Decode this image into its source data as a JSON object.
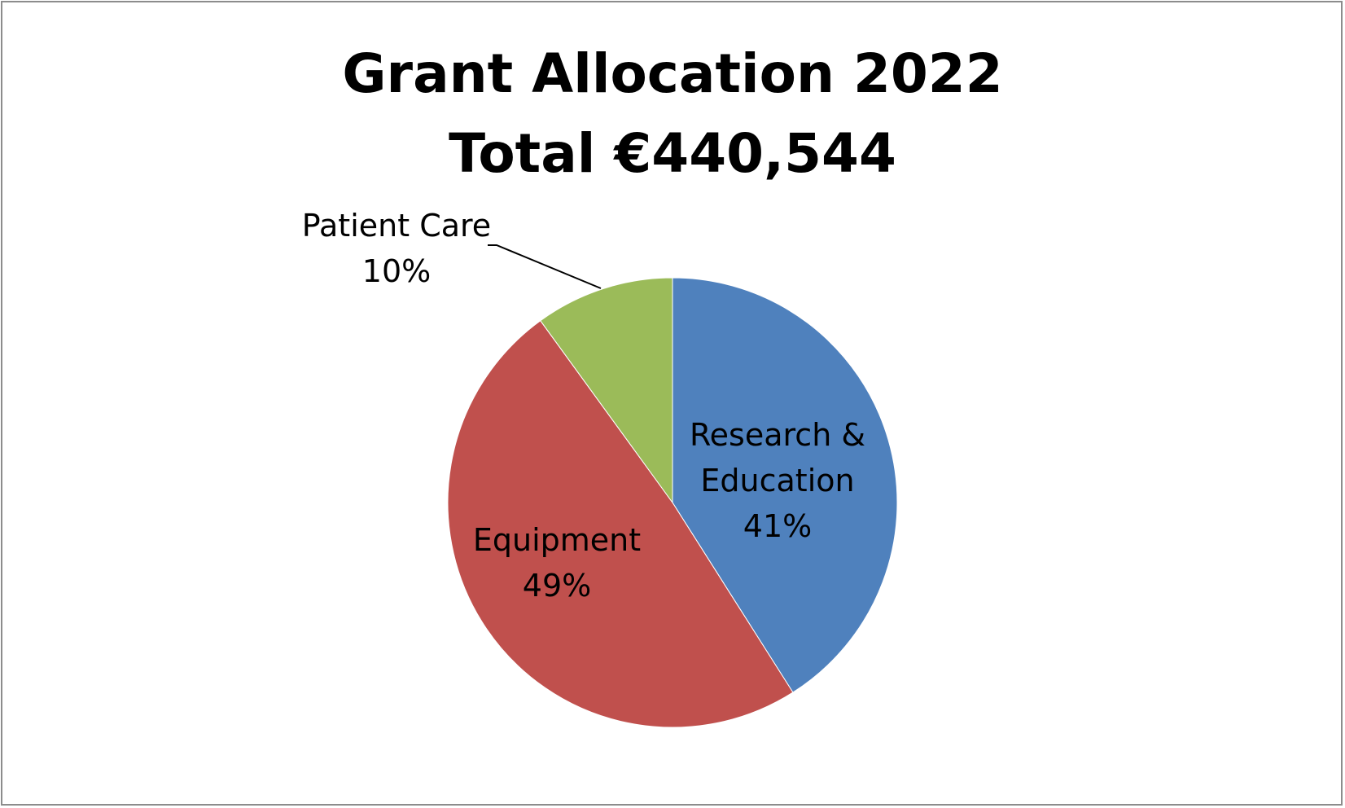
{
  "chart_data": {
    "type": "pie",
    "title": "Grant Allocation 2022",
    "subtitle": "Total €440,544",
    "slices": [
      {
        "name": "Research & Education",
        "label_lines": [
          "Research &",
          "Education"
        ],
        "value": 41,
        "value_label": "41%",
        "color": "#4f81bd"
      },
      {
        "name": "Equipment",
        "label_lines": [
          "Equipment"
        ],
        "value": 49,
        "value_label": "49%",
        "color": "#c0504d"
      },
      {
        "name": "Patient Care",
        "label_lines": [
          "Patient Care"
        ],
        "value": 10,
        "value_label": "10%",
        "color": "#9bbb59"
      }
    ],
    "start": "12 o'clock",
    "direction": "clockwise",
    "legend": "none",
    "data_labels": "category name and percentage"
  }
}
